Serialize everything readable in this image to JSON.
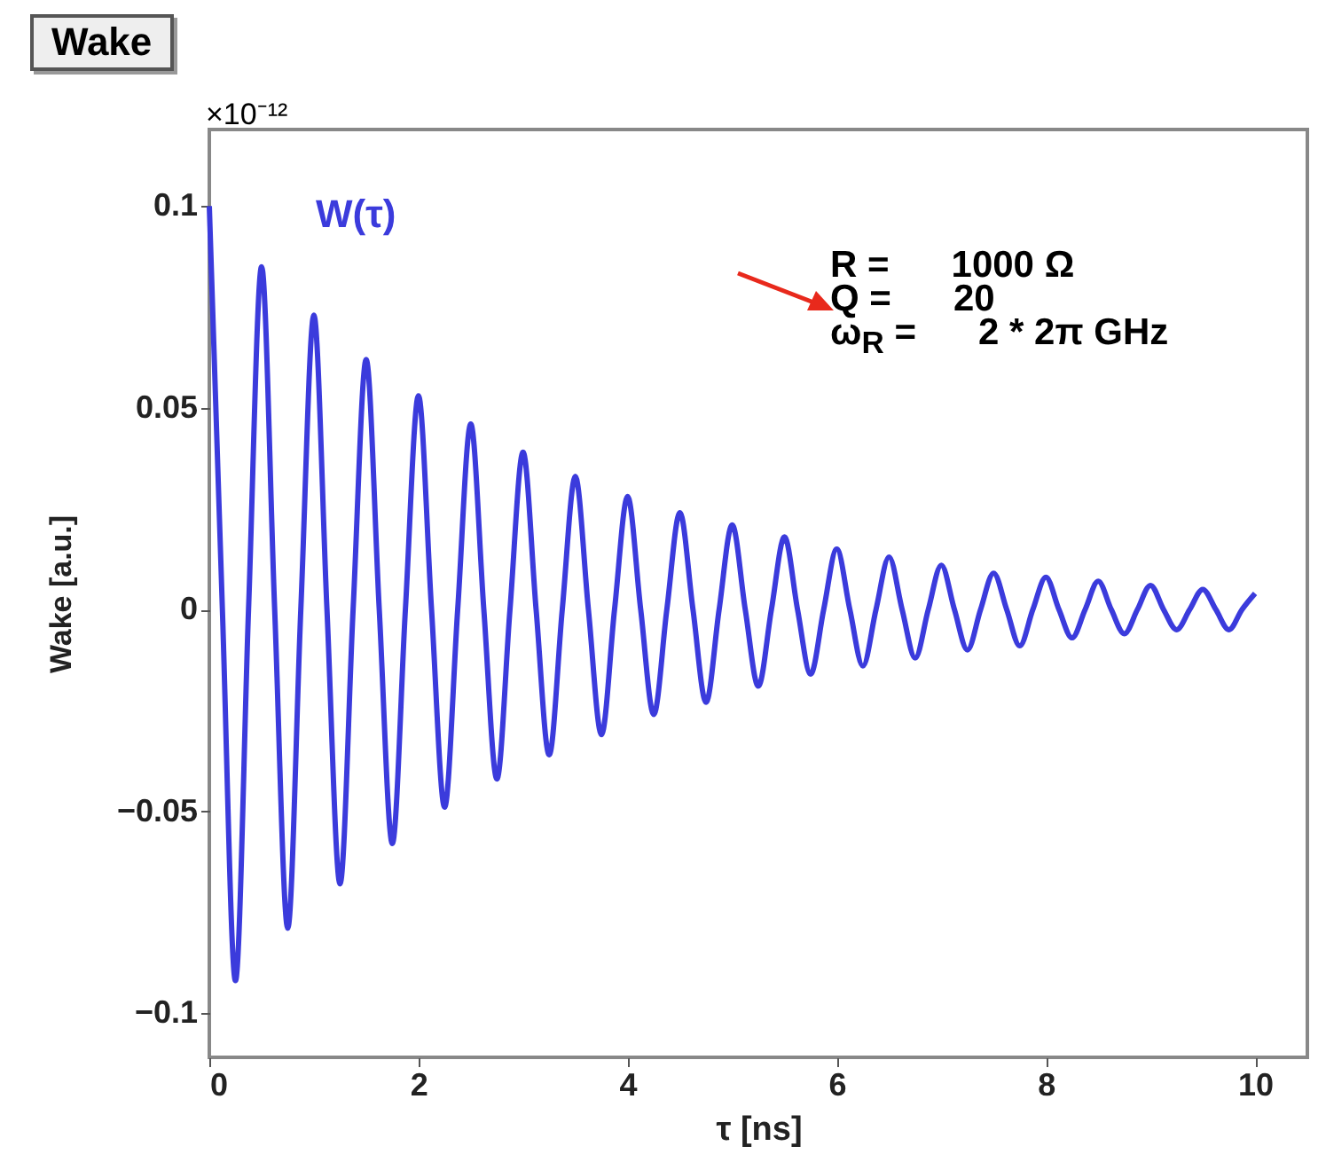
{
  "chart_data": {
    "type": "line",
    "title": "Wake",
    "xlabel": "τ [ns]",
    "ylabel": "Wake [a.u.]",
    "annotations": [
      "×10⁻¹²",
      "R =      1000 Ω",
      "Q =      20",
      "ω$_{R}$ =      2 * 2π GHz"
    ],
    "x": [
      0,
      0.125,
      0.25,
      0.375,
      0.5,
      0.625,
      0.75,
      0.875,
      1,
      1.125,
      1.25,
      1.375,
      1.5,
      1.625,
      1.75,
      1.875,
      2,
      2.125,
      2.25,
      2.375,
      2.5,
      2.625,
      2.75,
      2.875,
      3,
      3.125,
      3.25,
      3.375,
      3.5,
      3.625,
      3.75,
      3.875,
      4,
      4.125,
      4.25,
      4.375,
      4.5,
      4.625,
      4.75,
      4.875,
      5,
      5.125,
      5.25,
      5.375,
      5.5,
      5.625,
      5.75,
      5.875,
      6,
      6.125,
      6.25,
      6.375,
      6.5,
      6.625,
      6.75,
      6.875,
      7,
      7.125,
      7.25,
      7.375,
      7.5,
      7.625,
      7.75,
      7.875,
      8,
      8.125,
      8.25,
      8.375,
      8.5,
      8.625,
      8.75,
      8.875,
      9,
      9.125,
      9.25,
      9.375,
      9.5,
      9.625,
      9.75,
      9.875,
      10
    ],
    "series": [
      {
        "name": "W(τ)",
        "color": "#3b3bdc",
        "values": [
          0.1,
          0,
          -0.092,
          0,
          0.085,
          0,
          -0.079,
          0,
          0.073,
          0,
          -0.068,
          0,
          0.062,
          0,
          -0.058,
          0,
          0.053,
          0,
          -0.049,
          0,
          0.046,
          0,
          -0.042,
          0,
          0.039,
          0,
          -0.036,
          0,
          0.033,
          0,
          -0.031,
          0,
          0.028,
          0,
          -0.026,
          0,
          0.024,
          0,
          -0.023,
          0,
          0.021,
          0,
          -0.019,
          0,
          0.018,
          0,
          -0.016,
          0,
          0.015,
          0,
          -0.014,
          0,
          0.013,
          0,
          -0.012,
          0,
          0.011,
          0,
          -0.01,
          0,
          0.009,
          0,
          -0.009,
          0,
          0.008,
          0,
          -0.007,
          0,
          0.007,
          0,
          -0.006,
          0,
          0.006,
          0,
          -0.005,
          0,
          0.005,
          0,
          -0.005,
          0,
          0.004
        ]
      }
    ],
    "xlim": [
      0,
      10.5
    ],
    "xticks": [
      0,
      2,
      4,
      6,
      8,
      10
    ],
    "ylim": [
      -0.111,
      0.119
    ],
    "yticks": [
      -0.1,
      -0.05,
      0,
      0.05,
      0.1
    ],
    "grid": false,
    "marker": "none",
    "line_style": "solid"
  }
}
